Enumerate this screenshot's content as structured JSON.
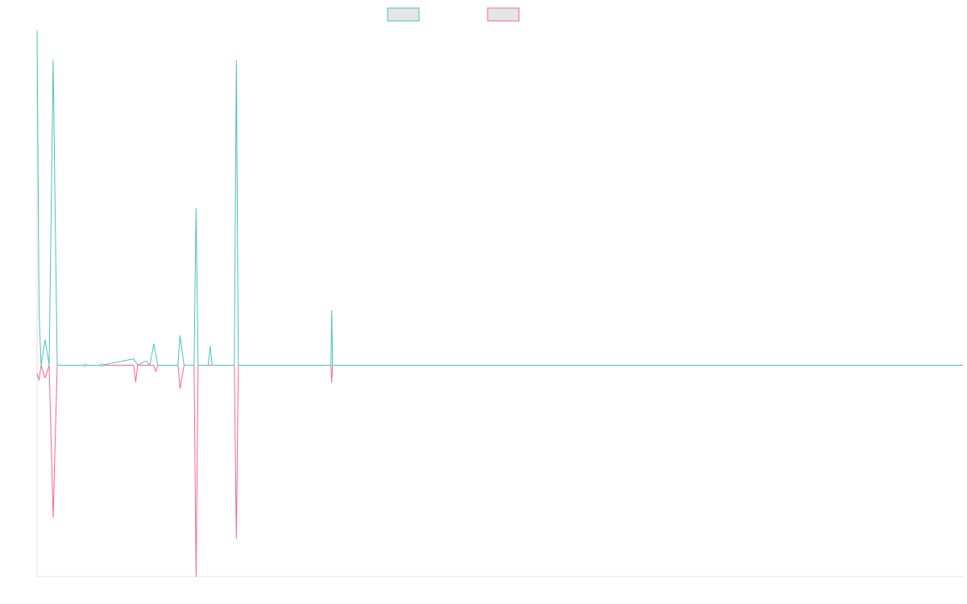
{
  "chart_data": {
    "type": "line",
    "title": "",
    "xlabel": "",
    "ylabel": "",
    "legend_position": "top-center",
    "grid": false,
    "ylim": [
      -1.0,
      1.59
    ],
    "xlim": [
      0,
      230
    ],
    "series": [
      {
        "color": "#4bc0c0",
        "points": [
          [
            0,
            1.58
          ],
          [
            0.5,
            0.25
          ],
          [
            1,
            0
          ],
          [
            2,
            0.12
          ],
          [
            3,
            0
          ],
          [
            4,
            1.44
          ],
          [
            5,
            0
          ],
          [
            12,
            0
          ],
          [
            16,
            0
          ],
          [
            24,
            0.03
          ],
          [
            25,
            0
          ],
          [
            27,
            0.02
          ],
          [
            28,
            0
          ],
          [
            29,
            0.1
          ],
          [
            30,
            0
          ],
          [
            35,
            0
          ],
          [
            35.5,
            0.14
          ],
          [
            36.5,
            0
          ],
          [
            39,
            0
          ],
          [
            39.5,
            0.74
          ],
          [
            40,
            0
          ],
          [
            42.5,
            0
          ],
          [
            43,
            0.09
          ],
          [
            43.5,
            0
          ],
          [
            49,
            0
          ],
          [
            49.5,
            1.44
          ],
          [
            50,
            0
          ],
          [
            73,
            0
          ],
          [
            73.2,
            0.26
          ],
          [
            73.4,
            0
          ],
          [
            230,
            0
          ]
        ]
      },
      {
        "color": "#ff6384",
        "points": [
          [
            0,
            -0.04
          ],
          [
            0.5,
            -0.07
          ],
          [
            1,
            0
          ],
          [
            2,
            -0.06
          ],
          [
            3,
            0
          ],
          [
            4,
            -0.72
          ],
          [
            5,
            0
          ],
          [
            24,
            0
          ],
          [
            24.5,
            -0.08
          ],
          [
            25,
            0
          ],
          [
            29,
            0
          ],
          [
            29.5,
            -0.03
          ],
          [
            30,
            0
          ],
          [
            35,
            0
          ],
          [
            35.5,
            -0.11
          ],
          [
            36.5,
            0
          ],
          [
            39,
            0
          ],
          [
            39.5,
            -1.0
          ],
          [
            40,
            0
          ],
          [
            49,
            0
          ],
          [
            49.5,
            -0.82
          ],
          [
            50,
            0
          ],
          [
            73,
            0
          ],
          [
            73.2,
            -0.08
          ],
          [
            73.4,
            0
          ],
          [
            230,
            0
          ]
        ]
      }
    ]
  }
}
